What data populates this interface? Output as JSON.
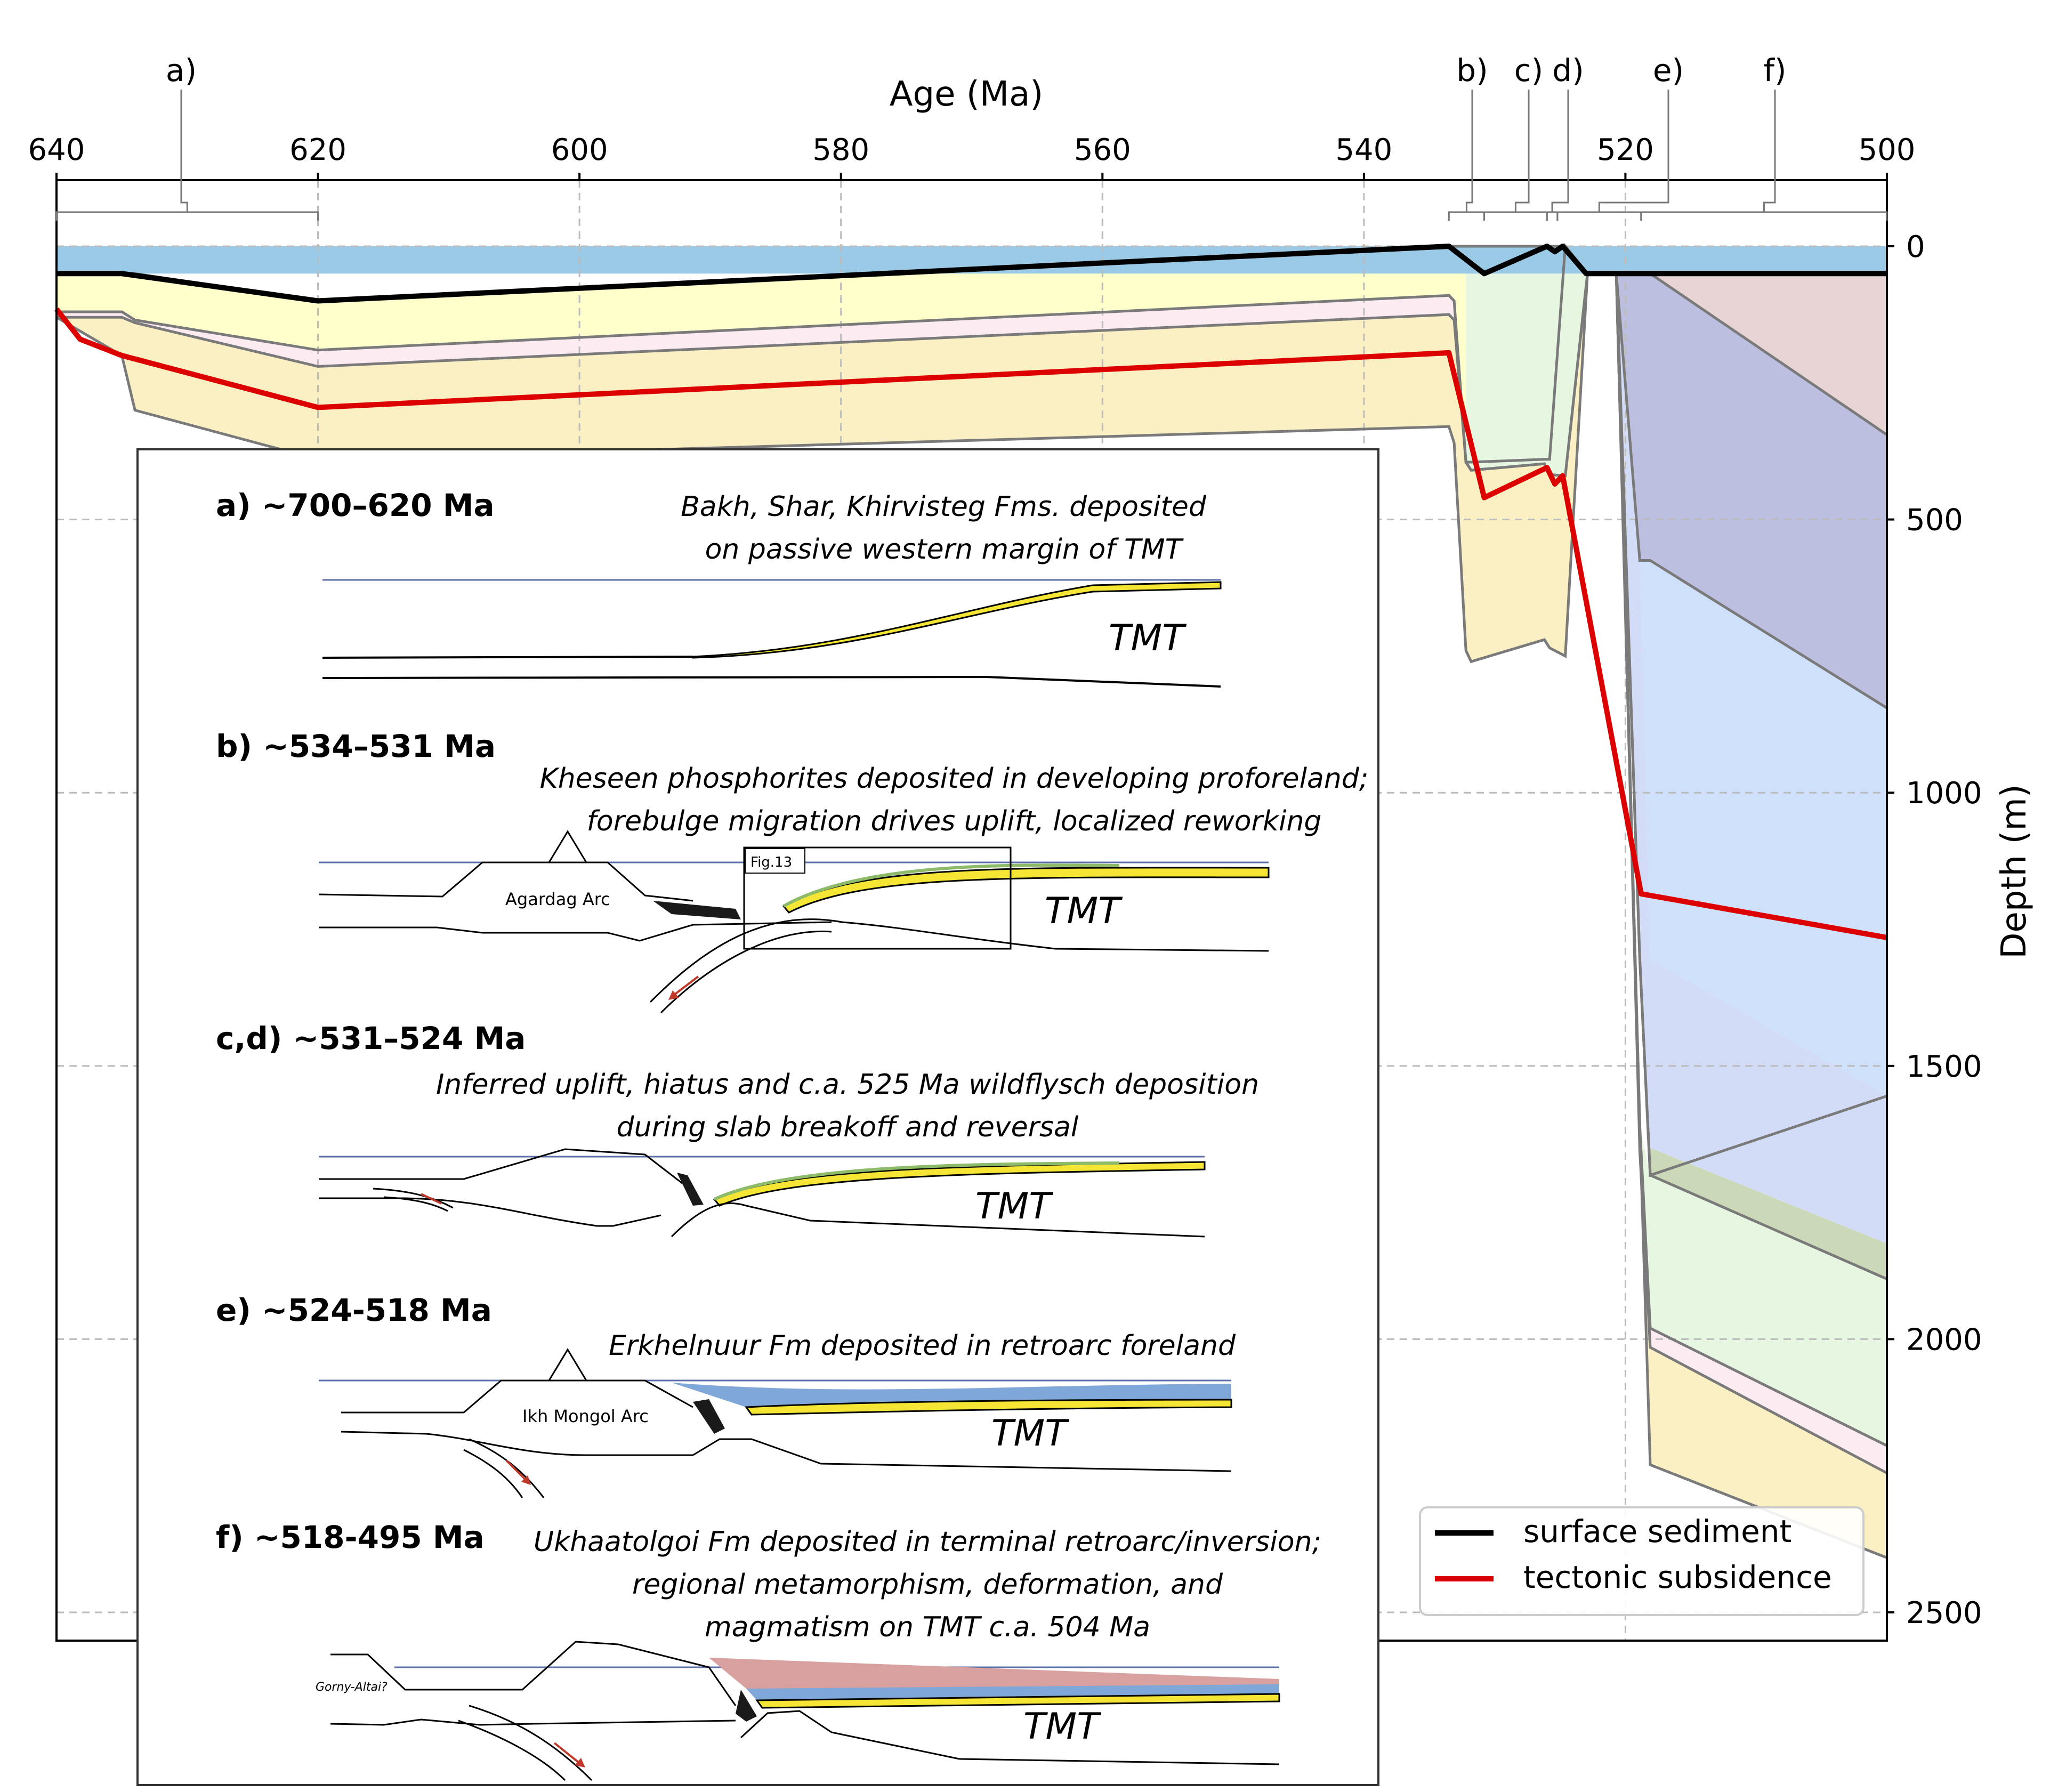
{
  "chart_data": {
    "type": "area",
    "xlabel": "Age (Ma)",
    "ylabel": "Depth (m)",
    "xlim": [
      640,
      500
    ],
    "ylim": [
      0,
      2550
    ],
    "x_inverted": true,
    "y_inverted": true,
    "x_ticks": [
      640,
      620,
      600,
      580,
      560,
      540,
      520,
      500
    ],
    "y_ticks": [
      0,
      500,
      1000,
      1500,
      2000,
      2500
    ],
    "grid": true,
    "legend_position": "bottom-right",
    "series": [
      {
        "name": "surface sediment",
        "color": "#000000",
        "x": [
          640,
          635,
          620,
          533.5,
          530.8,
          526,
          525.4,
          524.8,
          523,
          500
        ],
        "y": [
          50,
          50,
          100,
          0,
          50,
          0,
          10,
          0,
          50,
          50
        ]
      },
      {
        "name": "tectonic subsidence",
        "color": "#dd0000",
        "x": [
          640,
          638.2,
          635,
          620,
          533.5,
          530.8,
          526,
          525.4,
          524.8,
          518.8,
          500
        ],
        "y": [
          115,
          170,
          200,
          295,
          195,
          460,
          405,
          435,
          420,
          1185,
          1265
        ]
      }
    ],
    "ocean_band": {
      "top": 0,
      "bottom": 50,
      "color": "#9bcae6"
    },
    "strata_boundaries": [
      {
        "x": [
          640,
          635,
          634,
          620,
          533.5,
          533.1,
          532.2,
          531.8,
          526.2,
          525.8,
          524.6,
          522.9,
          522.9
        ],
        "y": [
          50,
          50,
          50,
          100,
          0,
          0,
          0,
          0,
          0,
          0,
          0,
          50,
          50
        ]
      },
      {
        "x": [
          640,
          635,
          634,
          620,
          533.5,
          533.1,
          532.2,
          531.8,
          526.2,
          525.8,
          524.6,
          522.9,
          522.9
        ],
        "y": [
          120,
          120,
          135,
          190,
          90,
          100,
          395,
          395,
          390,
          390,
          0,
          50,
          50
        ]
      },
      {
        "x": [
          640,
          635,
          634,
          620,
          533.5,
          533.1,
          532.2,
          531.8,
          526.2,
          525.8,
          524.6,
          522.9,
          522.9
        ],
        "y": [
          130,
          130,
          140,
          220,
          125,
          135,
          395,
          410,
          398,
          418,
          420,
          50,
          50
        ]
      },
      {
        "x": [
          640,
          635,
          634,
          620,
          533.5,
          533.1,
          532.2,
          531.8,
          526.2,
          525.8,
          524.6,
          522.9,
          522.9
        ],
        "y": [
          130,
          200,
          300,
          390,
          330,
          360,
          740,
          760,
          720,
          735,
          750,
          50,
          50
        ]
      },
      {
        "x": [
          532.2,
          531.8,
          526.2,
          525.8,
          524.6,
          522.9,
          521,
          520.7,
          500
        ],
        "y": [
          395,
          410,
          398,
          418,
          420,
          50,
          50,
          50,
          50
        ]
      },
      {
        "x": [
          526.2,
          525.8,
          524.6,
          522.9,
          521,
          520.7,
          518.9,
          518.1,
          518.1,
          500
        ],
        "y": [
          0,
          0,
          0,
          50,
          50,
          50,
          1610,
          1980,
          1980,
          2195
        ]
      },
      {
        "x": [
          526.2,
          525.8,
          524.6,
          522.9,
          521,
          520.7,
          518.9,
          518.1,
          518.1,
          500
        ],
        "y": [
          0,
          0,
          0,
          50,
          50,
          50,
          1655,
          2015,
          2015,
          2245
        ]
      },
      {
        "x": [
          526.2,
          525.8,
          524.6,
          522.9,
          521,
          520.7,
          518.9,
          518.1,
          518.1,
          500
        ],
        "y": [
          0,
          0,
          0,
          50,
          50,
          50,
          1610,
          2230,
          2230,
          2400
        ]
      },
      {
        "x": [
          522.9,
          521,
          520.7,
          518.9,
          518.1,
          518.1,
          500
        ],
        "y": [
          50,
          50,
          50,
          1305,
          1700,
          1700,
          1555
        ]
      },
      {
        "x": [
          522.9,
          521,
          520.7,
          518.9,
          518.1,
          518.1,
          500
        ],
        "y": [
          50,
          50,
          50,
          1305,
          1700,
          1700,
          1890
        ]
      },
      {
        "x": [
          520.7,
          518.9,
          518.1,
          518.1,
          500
        ],
        "y": [
          50,
          575,
          575,
          575,
          845
        ]
      },
      {
        "x": [
          520.7,
          518.9,
          518.1,
          518.1,
          500
        ],
        "y": [
          50,
          50,
          50,
          50,
          345
        ]
      }
    ],
    "strata_fills": [
      {
        "color": "#ffffcc",
        "x": [
          640,
          635,
          634,
          620,
          533.5,
          533.1,
          532.2,
          531.8,
          526.2,
          525.8,
          524.6,
          522.9
        ],
        "top": [
          50,
          50,
          50,
          100,
          0,
          0,
          0,
          0,
          0,
          0,
          0,
          50
        ],
        "bottom": [
          120,
          120,
          135,
          190,
          90,
          100,
          395,
          395,
          390,
          390,
          0,
          50
        ]
      },
      {
        "color": "#fcecf2",
        "x": [
          640,
          635,
          634,
          620,
          533.5,
          533.1,
          532.2,
          531.8,
          526.2,
          525.8,
          524.6,
          522.9
        ],
        "top": [
          120,
          120,
          135,
          190,
          90,
          100,
          395,
          395,
          390,
          390,
          0,
          50
        ],
        "bottom": [
          130,
          130,
          140,
          220,
          125,
          135,
          395,
          410,
          398,
          418,
          420,
          50
        ]
      },
      {
        "color": "#fbf0c4",
        "x": [
          640,
          635,
          634,
          620,
          533.5,
          533.1,
          532.2,
          531.8,
          526.2,
          525.8,
          524.6,
          522.9
        ],
        "top": [
          130,
          130,
          140,
          220,
          125,
          135,
          395,
          410,
          398,
          418,
          420,
          50
        ],
        "bottom": [
          130,
          200,
          300,
          390,
          330,
          360,
          740,
          760,
          720,
          735,
          750,
          50
        ]
      },
      {
        "color": "#e6f6e0",
        "x": [
          532.2,
          531.8,
          526.2,
          525.8,
          524.6,
          522.9
        ],
        "top": [
          0,
          0,
          0,
          0,
          0,
          50
        ],
        "bottom": [
          395,
          410,
          398,
          418,
          420,
          50
        ]
      },
      {
        "color": "#e6f6e0",
        "x": [
          526.2,
          525.8,
          524.6,
          522.9,
          521,
          520.7,
          518.9,
          518.1,
          500
        ],
        "top": [
          0,
          0,
          0,
          50,
          50,
          50,
          1610,
          1700,
          1890
        ],
        "bottom": [
          0,
          0,
          0,
          50,
          50,
          50,
          1610,
          1980,
          2195
        ]
      },
      {
        "color": "#fcecf2",
        "x": [
          526.2,
          525.8,
          524.6,
          522.9,
          521,
          520.7,
          518.9,
          518.1,
          500
        ],
        "top": [
          0,
          0,
          0,
          50,
          50,
          50,
          1610,
          1980,
          2195
        ],
        "bottom": [
          0,
          0,
          0,
          50,
          50,
          50,
          1655,
          2015,
          2245
        ]
      },
      {
        "color": "#fbf0c4",
        "x": [
          526.2,
          525.8,
          524.6,
          522.9,
          521,
          520.7,
          518.9,
          518.1,
          500
        ],
        "top": [
          0,
          0,
          0,
          50,
          50,
          50,
          1655,
          2015,
          2245
        ],
        "bottom": [
          0,
          0,
          0,
          50,
          50,
          50,
          1610,
          2230,
          2400
        ]
      },
      {
        "color": "#ccd9b8",
        "x": [
          526.2,
          525.8,
          524.6,
          522.9,
          521,
          520.7,
          518.9,
          518.1,
          500
        ],
        "top": [
          0,
          0,
          0,
          50,
          50,
          50,
          1305,
          1650,
          1825
        ],
        "bottom": [
          0,
          0,
          0,
          50,
          50,
          50,
          1305,
          1700,
          1890
        ]
      },
      {
        "color": "#cfe0fb",
        "x": [
          524.6,
          522.9,
          521,
          520.7,
          518.9,
          518.1,
          500
        ],
        "top": [
          0,
          50,
          50,
          50,
          50,
          50,
          50
        ],
        "bottom": [
          0,
          50,
          50,
          50,
          575,
          1305,
          1555
        ]
      },
      {
        "color": "#d3dcf6",
        "x": [
          522.9,
          521,
          520.7,
          518.9,
          518.1,
          500
        ],
        "top": [
          50,
          50,
          50,
          575,
          1305,
          1555
        ],
        "bottom": [
          50,
          50,
          50,
          1305,
          1650,
          1825
        ]
      },
      {
        "color": "#bcbfe0",
        "x": [
          520.7,
          518.9,
          518.1,
          500
        ],
        "top": [
          50,
          50,
          50,
          345
        ],
        "bottom": [
          50,
          575,
          575,
          845
        ]
      },
      {
        "color": "#e8d4d4",
        "x": [
          520.7,
          518.9,
          518.1,
          500
        ],
        "top": [
          50,
          50,
          50,
          50
        ],
        "bottom": [
          50,
          50,
          50,
          345
        ]
      }
    ],
    "stage_markers": [
      {
        "label": "a)",
        "x_from": 640,
        "x_to": 620
      },
      {
        "label": "b)",
        "x_from": 533.5,
        "x_to": 530.8
      },
      {
        "label": "c)",
        "x_from": 530.8,
        "x_to": 526
      },
      {
        "label": "d)",
        "x_from": 526,
        "x_to": 525.2
      },
      {
        "label": "e)",
        "x_from": 525.2,
        "x_to": 518.8
      },
      {
        "label": "f)",
        "x_from": 518.8,
        "x_to": 500
      }
    ]
  },
  "inset": {
    "panels": [
      {
        "title": "a) ~700–620 Ma",
        "caption": [
          "Bakh, Shar, Khirvisteg Fms. deposited",
          "on passive western margin of TMT"
        ],
        "tmt_label": "TMT"
      },
      {
        "title": "b) ~534–531 Ma",
        "caption": [
          "Kheseen phosphorites deposited in developing proforeland;",
          "forebulge migration drives uplift, localized reworking"
        ],
        "tmt_label": "TMT",
        "arc_label": "Agardag Arc",
        "box_label": "Fig.13"
      },
      {
        "title": "c,d) ~531–524 Ma",
        "caption": [
          "Inferred uplift, hiatus and c.a. 525 Ma wildflysch deposition",
          "during slab breakoff and reversal"
        ],
        "tmt_label": "TMT"
      },
      {
        "title": "e) ~524-518 Ma",
        "caption": [
          "Erkhelnuur Fm deposited in retroarc foreland"
        ],
        "tmt_label": "TMT",
        "arc_label": "Ikh Mongol Arc"
      },
      {
        "title": "f) ~518-495 Ma",
        "caption": [
          "Ukhaatolgoi Fm deposited in terminal retroarc/inversion;",
          "regional metamorphism, deformation, and",
          "magmatism on TMT c.a. 504 Ma"
        ],
        "tmt_label": "TMT",
        "side_label": "Gorny-Altai?"
      }
    ]
  },
  "colors": {
    "yellow_layer": "#f5e636",
    "blue_layer": "#7fa8d8",
    "pink_layer": "#d9a0a0",
    "green_layer": "#8dbb6a",
    "arrow": "#c0392b"
  }
}
